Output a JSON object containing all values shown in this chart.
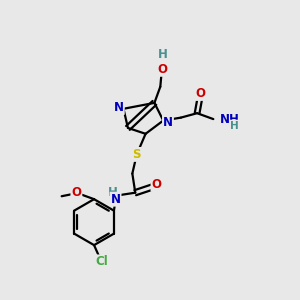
{
  "bg_color": "#e8e8e8",
  "atom_colors": {
    "C": "#000000",
    "N": "#0000bb",
    "O": "#cc0000",
    "S": "#ccbb00",
    "H": "#4a9090",
    "Cl": "#44aa44"
  },
  "bond_color": "#000000",
  "bond_width": 1.6,
  "font_size_atom": 8.5,
  "fig_size": [
    3.0,
    3.0
  ],
  "dpi": 100
}
